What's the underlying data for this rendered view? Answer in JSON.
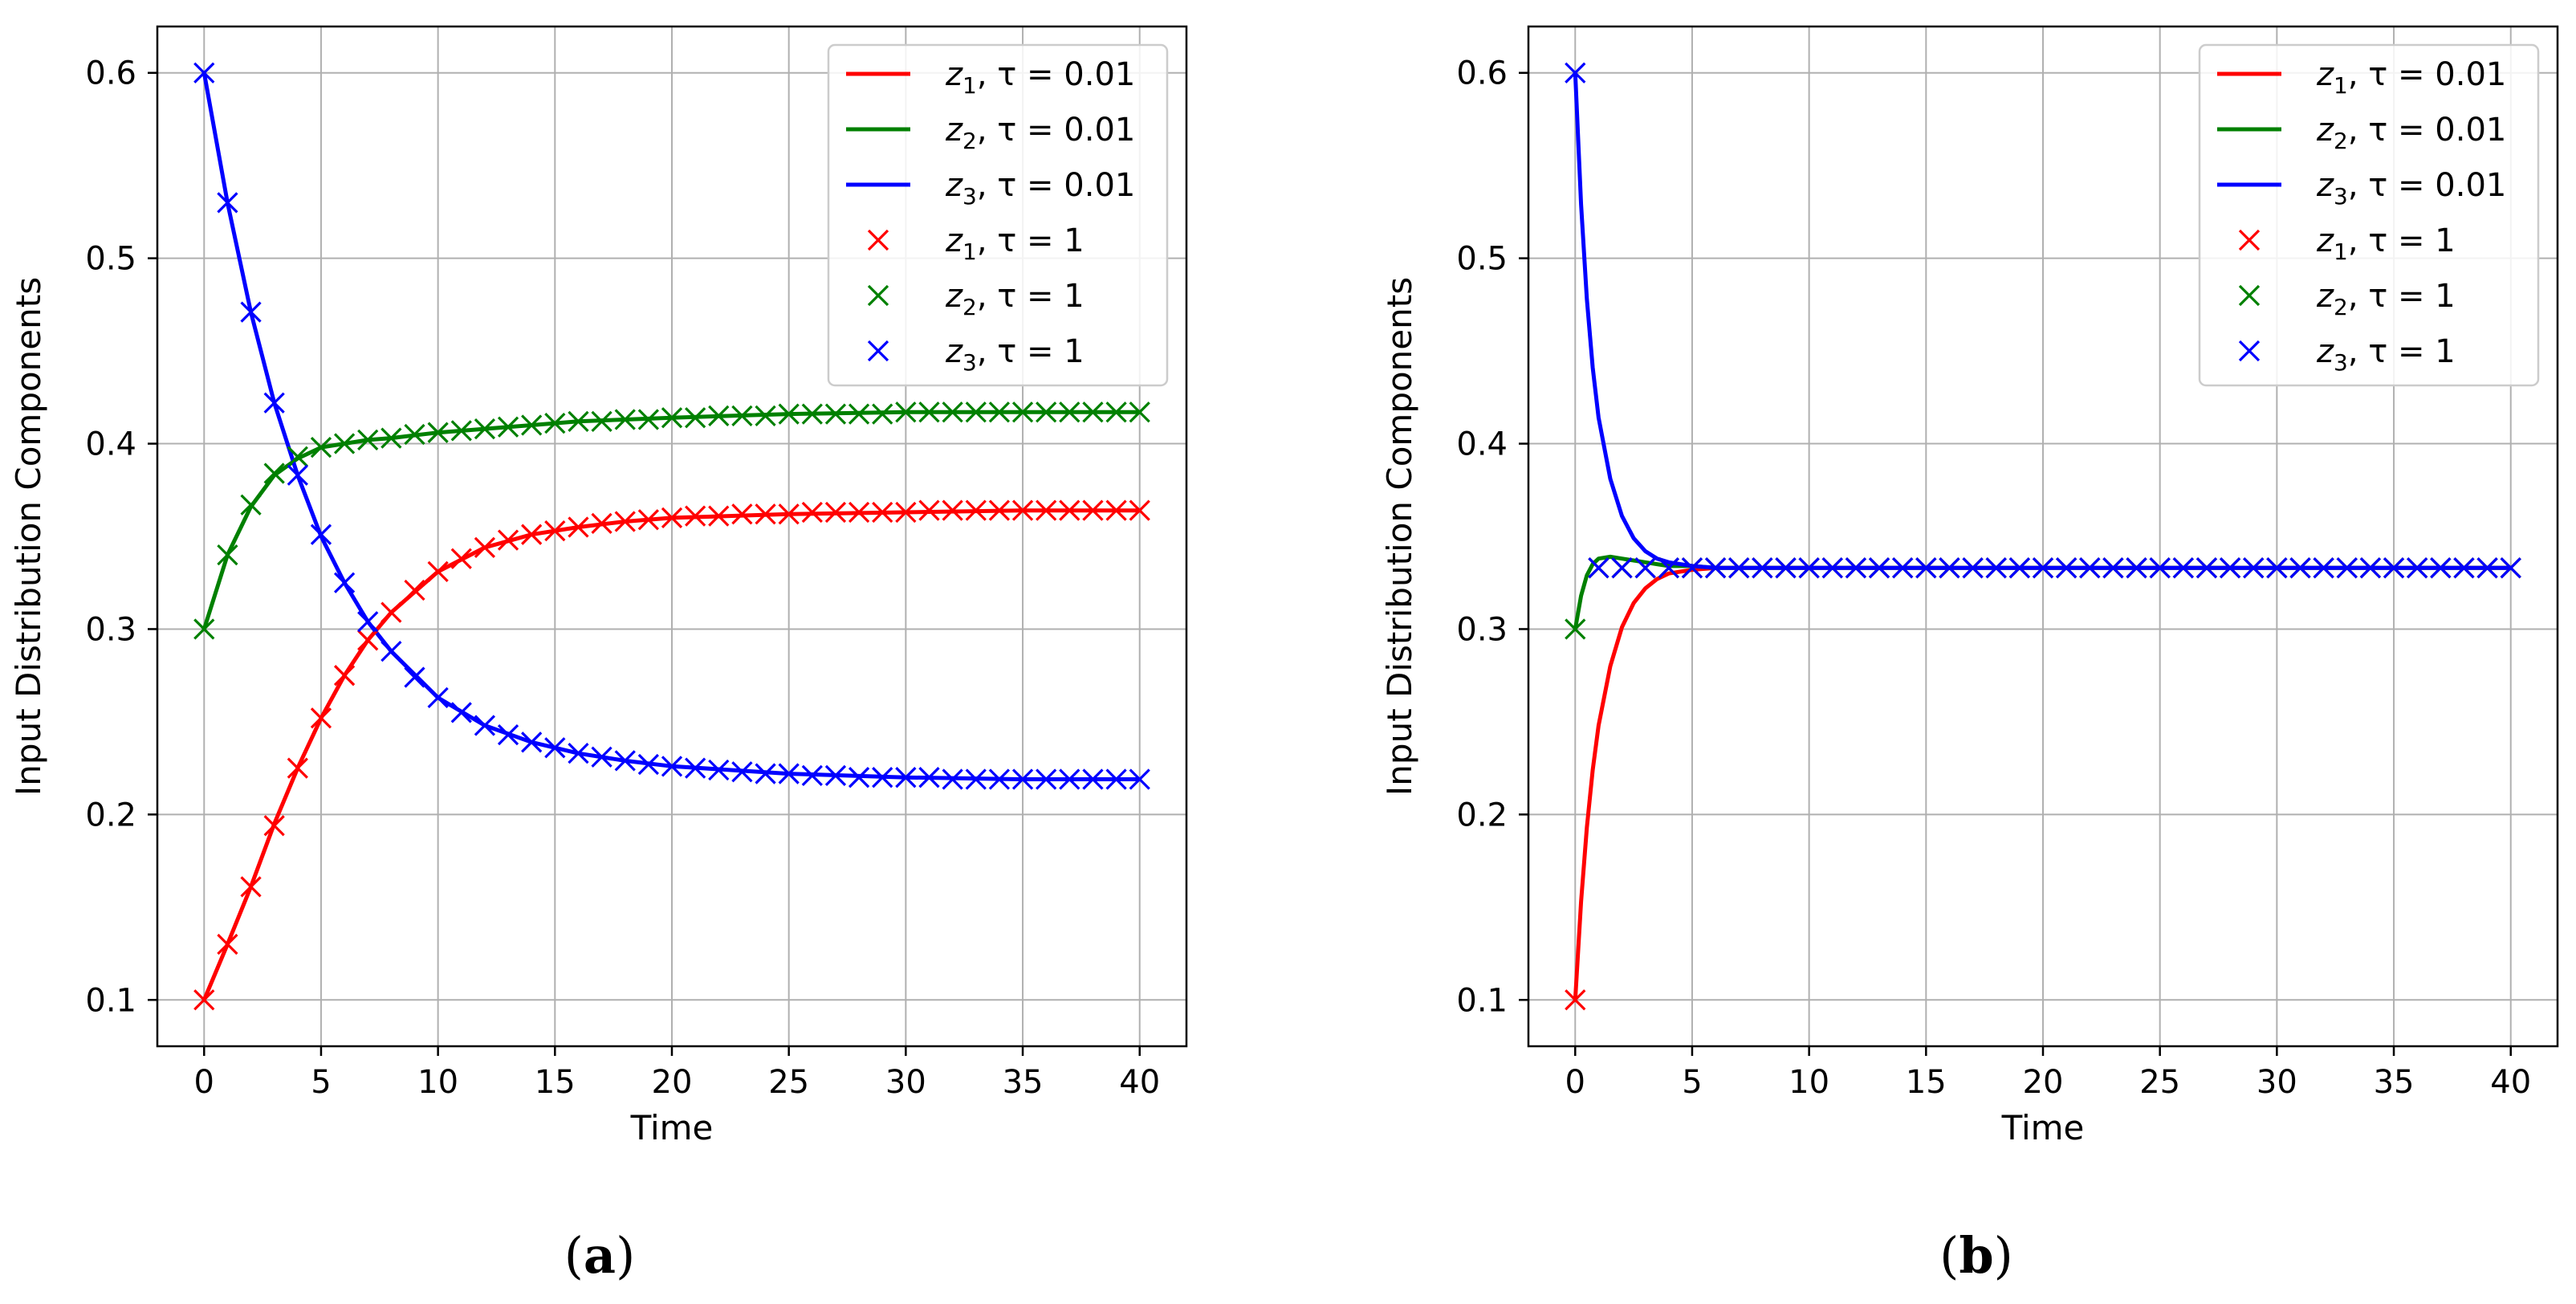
{
  "chart_data": [
    {
      "type": "line",
      "panel_label": "a",
      "xlabel": "Time",
      "ylabel": "Input Distribution Components",
      "xlim": [
        -2,
        42
      ],
      "ylim": [
        0.075,
        0.625
      ],
      "xticks": [
        0,
        5,
        10,
        15,
        20,
        25,
        30,
        35,
        40
      ],
      "yticks": [
        0.1,
        0.2,
        0.3,
        0.4,
        0.5,
        0.6
      ],
      "xtick_labels": [
        "0",
        "5",
        "10",
        "15",
        "20",
        "25",
        "30",
        "35",
        "40"
      ],
      "ytick_labels": [
        "0.1",
        "0.2",
        "0.3",
        "0.4",
        "0.5",
        "0.6"
      ],
      "grid": true,
      "legend_position": "top-right",
      "series": [
        {
          "name": "z1, τ = 0.01",
          "label_var": "z",
          "label_sub": "1",
          "label_rest": ", τ = 0.01",
          "style": "line",
          "color": "#ff0000",
          "x": [
            0,
            1,
            2,
            3,
            4,
            5,
            6,
            7,
            8,
            10,
            12,
            14,
            16,
            18,
            20,
            25,
            30,
            35,
            40
          ],
          "y": [
            0.1,
            0.13,
            0.161,
            0.195,
            0.225,
            0.252,
            0.275,
            0.294,
            0.309,
            0.331,
            0.344,
            0.351,
            0.355,
            0.358,
            0.36,
            0.362,
            0.363,
            0.364,
            0.364
          ]
        },
        {
          "name": "z2, τ = 0.01",
          "label_var": "z",
          "label_sub": "2",
          "label_rest": ", τ = 0.01",
          "style": "line",
          "color": "#008000",
          "x": [
            0,
            1,
            2,
            3,
            4,
            5,
            6,
            7,
            8,
            10,
            12,
            14,
            16,
            18,
            20,
            25,
            30,
            35,
            40
          ],
          "y": [
            0.3,
            0.34,
            0.366,
            0.383,
            0.392,
            0.398,
            0.4,
            0.402,
            0.403,
            0.406,
            0.408,
            0.41,
            0.412,
            0.413,
            0.414,
            0.416,
            0.417,
            0.417,
            0.417
          ]
        },
        {
          "name": "z3, τ = 0.01",
          "label_var": "z",
          "label_sub": "3",
          "label_rest": ", τ = 0.01",
          "style": "line",
          "color": "#0000ff",
          "x": [
            0,
            1,
            2,
            3,
            4,
            5,
            6,
            7,
            8,
            10,
            12,
            14,
            16,
            18,
            20,
            25,
            30,
            35,
            40
          ],
          "y": [
            0.6,
            0.53,
            0.471,
            0.422,
            0.383,
            0.35,
            0.325,
            0.304,
            0.288,
            0.263,
            0.248,
            0.239,
            0.233,
            0.229,
            0.226,
            0.222,
            0.22,
            0.219,
            0.219
          ]
        },
        {
          "name": "z1, τ = 1",
          "label_var": "z",
          "label_sub": "1",
          "label_rest": ", τ = 1",
          "style": "marker",
          "color": "#ff0000",
          "x": [
            0,
            1,
            2,
            3,
            4,
            5,
            6,
            7,
            8,
            9,
            10,
            11,
            12,
            13,
            14,
            15,
            16,
            17,
            18,
            19,
            20,
            21,
            22,
            23,
            24,
            25,
            26,
            27,
            28,
            29,
            30,
            31,
            32,
            33,
            34,
            35,
            36,
            37,
            38,
            39,
            40
          ],
          "y": [
            0.1,
            0.13,
            0.161,
            0.194,
            0.225,
            0.252,
            0.275,
            0.294,
            0.309,
            0.321,
            0.331,
            0.338,
            0.344,
            0.348,
            0.351,
            0.353,
            0.355,
            0.357,
            0.358,
            0.359,
            0.36,
            0.361,
            0.361,
            0.362,
            0.362,
            0.362,
            0.363,
            0.363,
            0.363,
            0.363,
            0.363,
            0.364,
            0.364,
            0.364,
            0.364,
            0.364,
            0.364,
            0.364,
            0.364,
            0.364,
            0.364
          ]
        },
        {
          "name": "z2, τ = 1",
          "label_var": "z",
          "label_sub": "2",
          "label_rest": ", τ = 1",
          "style": "marker",
          "color": "#008000",
          "x": [
            0,
            1,
            2,
            3,
            4,
            5,
            6,
            7,
            8,
            9,
            10,
            11,
            12,
            13,
            14,
            15,
            16,
            17,
            18,
            19,
            20,
            21,
            22,
            23,
            24,
            25,
            26,
            27,
            28,
            29,
            30,
            31,
            32,
            33,
            34,
            35,
            36,
            37,
            38,
            39,
            40
          ],
          "y": [
            0.3,
            0.34,
            0.367,
            0.384,
            0.393,
            0.398,
            0.4,
            0.402,
            0.403,
            0.405,
            0.406,
            0.407,
            0.408,
            0.409,
            0.41,
            0.411,
            0.412,
            0.412,
            0.413,
            0.413,
            0.414,
            0.414,
            0.415,
            0.415,
            0.415,
            0.416,
            0.416,
            0.416,
            0.416,
            0.416,
            0.417,
            0.417,
            0.417,
            0.417,
            0.417,
            0.417,
            0.417,
            0.417,
            0.417,
            0.417,
            0.417
          ]
        },
        {
          "name": "z3, τ = 1",
          "label_var": "z",
          "label_sub": "3",
          "label_rest": ", τ = 1",
          "style": "marker",
          "color": "#0000ff",
          "x": [
            0,
            1,
            2,
            3,
            4,
            5,
            6,
            7,
            8,
            9,
            10,
            11,
            12,
            13,
            14,
            15,
            16,
            17,
            18,
            19,
            20,
            21,
            22,
            23,
            24,
            25,
            26,
            27,
            28,
            29,
            30,
            31,
            32,
            33,
            34,
            35,
            36,
            37,
            38,
            39,
            40
          ],
          "y": [
            0.6,
            0.53,
            0.471,
            0.422,
            0.383,
            0.351,
            0.325,
            0.304,
            0.288,
            0.274,
            0.263,
            0.255,
            0.248,
            0.243,
            0.239,
            0.236,
            0.233,
            0.231,
            0.229,
            0.227,
            0.226,
            0.225,
            0.224,
            0.223,
            0.222,
            0.222,
            0.221,
            0.221,
            0.22,
            0.22,
            0.22,
            0.22,
            0.219,
            0.219,
            0.219,
            0.219,
            0.219,
            0.219,
            0.219,
            0.219,
            0.219
          ]
        }
      ]
    },
    {
      "type": "line",
      "panel_label": "b",
      "xlabel": "Time",
      "ylabel": "Input Distribution Components",
      "xlim": [
        -2,
        42
      ],
      "ylim": [
        0.075,
        0.625
      ],
      "xticks": [
        0,
        5,
        10,
        15,
        20,
        25,
        30,
        35,
        40
      ],
      "yticks": [
        0.1,
        0.2,
        0.3,
        0.4,
        0.5,
        0.6
      ],
      "xtick_labels": [
        "0",
        "5",
        "10",
        "15",
        "20",
        "25",
        "30",
        "35",
        "40"
      ],
      "ytick_labels": [
        "0.1",
        "0.2",
        "0.3",
        "0.4",
        "0.5",
        "0.6"
      ],
      "grid": true,
      "legend_position": "top-right",
      "series": [
        {
          "name": "z1, τ = 0.01",
          "label_var": "z",
          "label_sub": "1",
          "label_rest": ", τ = 0.01",
          "style": "line",
          "color": "#ff0000",
          "x": [
            0,
            0.25,
            0.5,
            0.75,
            1,
            1.5,
            2,
            2.5,
            3,
            3.5,
            4,
            5,
            6,
            8,
            10,
            15,
            20,
            30,
            40
          ],
          "y": [
            0.1,
            0.153,
            0.193,
            0.224,
            0.248,
            0.28,
            0.301,
            0.314,
            0.322,
            0.327,
            0.33,
            0.332,
            0.333,
            0.333,
            0.333,
            0.333,
            0.333,
            0.333,
            0.333
          ]
        },
        {
          "name": "z2, τ = 0.01",
          "label_var": "z",
          "label_sub": "2",
          "label_rest": ", τ = 0.01",
          "style": "line",
          "color": "#008000",
          "x": [
            0,
            0.25,
            0.5,
            0.75,
            1,
            1.5,
            2,
            2.5,
            3,
            3.5,
            4,
            5,
            6,
            8,
            10,
            15,
            20,
            30,
            40
          ],
          "y": [
            0.3,
            0.318,
            0.329,
            0.335,
            0.338,
            0.339,
            0.338,
            0.337,
            0.336,
            0.335,
            0.334,
            0.334,
            0.333,
            0.333,
            0.333,
            0.333,
            0.333,
            0.333,
            0.333
          ]
        },
        {
          "name": "z3, τ = 0.01",
          "label_var": "z",
          "label_sub": "3",
          "label_rest": ", τ = 0.01",
          "style": "line",
          "color": "#0000ff",
          "x": [
            0,
            0.25,
            0.5,
            0.75,
            1,
            1.5,
            2,
            2.5,
            3,
            3.5,
            4,
            5,
            6,
            8,
            10,
            15,
            20,
            30,
            40
          ],
          "y": [
            0.6,
            0.529,
            0.478,
            0.441,
            0.414,
            0.381,
            0.361,
            0.349,
            0.342,
            0.338,
            0.336,
            0.334,
            0.333,
            0.333,
            0.333,
            0.333,
            0.333,
            0.333,
            0.333
          ]
        },
        {
          "name": "z1, τ = 1",
          "label_var": "z",
          "label_sub": "1",
          "label_rest": ", τ = 1",
          "style": "marker",
          "color": "#ff0000",
          "x": [
            0,
            1,
            2,
            3,
            4,
            5,
            6,
            7,
            8,
            9,
            10,
            11,
            12,
            13,
            14,
            15,
            16,
            17,
            18,
            19,
            20,
            21,
            22,
            23,
            24,
            25,
            26,
            27,
            28,
            29,
            30,
            31,
            32,
            33,
            34,
            35,
            36,
            37,
            38,
            39,
            40
          ],
          "y": [
            0.1,
            0.333,
            0.333,
            0.333,
            0.333,
            0.333,
            0.333,
            0.333,
            0.333,
            0.333,
            0.333,
            0.333,
            0.333,
            0.333,
            0.333,
            0.333,
            0.333,
            0.333,
            0.333,
            0.333,
            0.333,
            0.333,
            0.333,
            0.333,
            0.333,
            0.333,
            0.333,
            0.333,
            0.333,
            0.333,
            0.333,
            0.333,
            0.333,
            0.333,
            0.333,
            0.333,
            0.333,
            0.333,
            0.333,
            0.333,
            0.333
          ]
        },
        {
          "name": "z2, τ = 1",
          "label_var": "z",
          "label_sub": "2",
          "label_rest": ", τ = 1",
          "style": "marker",
          "color": "#008000",
          "x": [
            0,
            1,
            2,
            3,
            4,
            5,
            6,
            7,
            8,
            9,
            10,
            11,
            12,
            13,
            14,
            15,
            16,
            17,
            18,
            19,
            20,
            21,
            22,
            23,
            24,
            25,
            26,
            27,
            28,
            29,
            30,
            31,
            32,
            33,
            34,
            35,
            36,
            37,
            38,
            39,
            40
          ],
          "y": [
            0.3,
            0.333,
            0.333,
            0.333,
            0.333,
            0.333,
            0.333,
            0.333,
            0.333,
            0.333,
            0.333,
            0.333,
            0.333,
            0.333,
            0.333,
            0.333,
            0.333,
            0.333,
            0.333,
            0.333,
            0.333,
            0.333,
            0.333,
            0.333,
            0.333,
            0.333,
            0.333,
            0.333,
            0.333,
            0.333,
            0.333,
            0.333,
            0.333,
            0.333,
            0.333,
            0.333,
            0.333,
            0.333,
            0.333,
            0.333,
            0.333
          ]
        },
        {
          "name": "z3, τ = 1",
          "label_var": "z",
          "label_sub": "3",
          "label_rest": ", τ = 1",
          "style": "marker",
          "color": "#0000ff",
          "x": [
            0,
            1,
            2,
            3,
            4,
            5,
            6,
            7,
            8,
            9,
            10,
            11,
            12,
            13,
            14,
            15,
            16,
            17,
            18,
            19,
            20,
            21,
            22,
            23,
            24,
            25,
            26,
            27,
            28,
            29,
            30,
            31,
            32,
            33,
            34,
            35,
            36,
            37,
            38,
            39,
            40
          ],
          "y": [
            0.6,
            0.333,
            0.333,
            0.333,
            0.333,
            0.333,
            0.333,
            0.333,
            0.333,
            0.333,
            0.333,
            0.333,
            0.333,
            0.333,
            0.333,
            0.333,
            0.333,
            0.333,
            0.333,
            0.333,
            0.333,
            0.333,
            0.333,
            0.333,
            0.333,
            0.333,
            0.333,
            0.333,
            0.333,
            0.333,
            0.333,
            0.333,
            0.333,
            0.333,
            0.333,
            0.333,
            0.333,
            0.333,
            0.333,
            0.333,
            0.333
          ]
        }
      ]
    }
  ]
}
